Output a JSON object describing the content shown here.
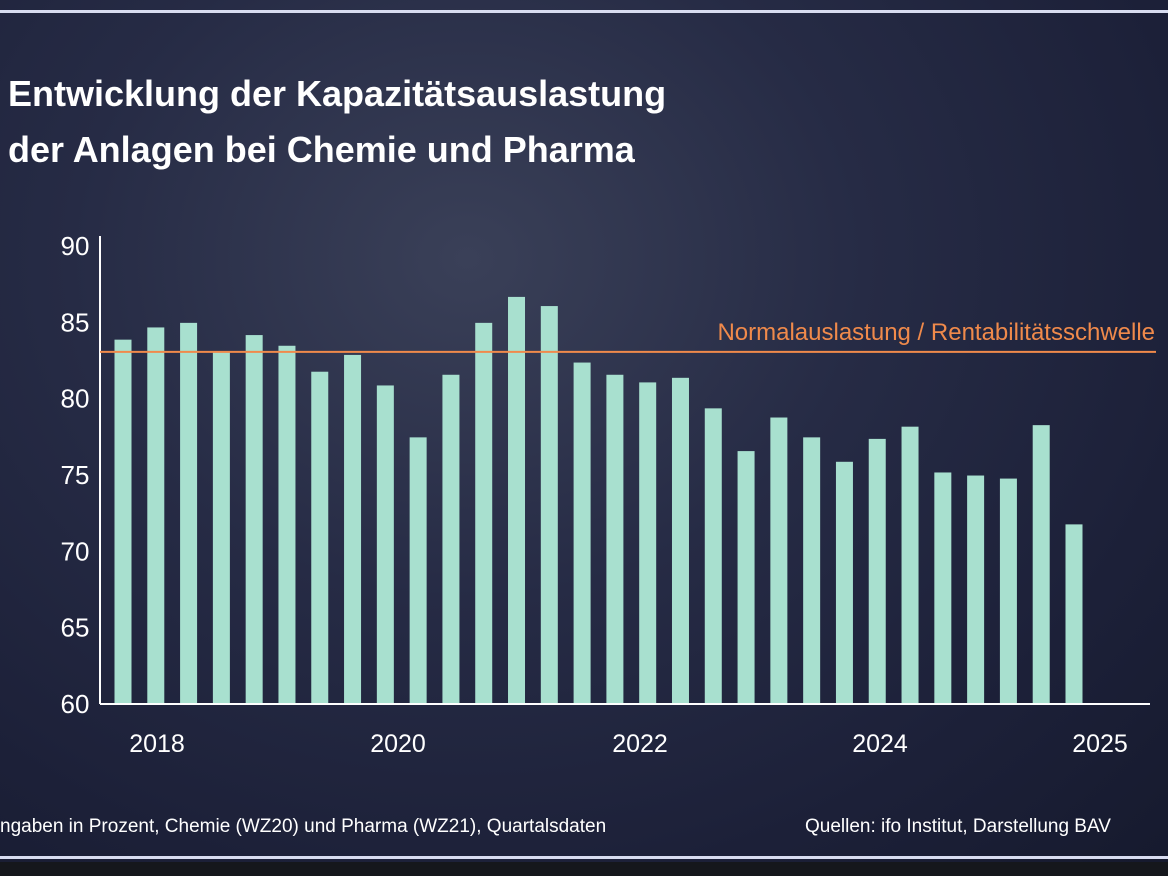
{
  "title_lines": [
    "Entwicklung der Kapazitätsauslastung",
    "der Anlagen bei Chemie und Pharma"
  ],
  "footnote_left": "ngaben in Prozent, Chemie (WZ20) und Pharma (WZ21), Quartalsdaten",
  "footnote_right": "Quellen: ifo Institut, Darstellung BAV",
  "chart_data": {
    "type": "bar",
    "title": "Entwicklung der Kapazitätsauslastung der Anlagen bei Chemie und Pharma",
    "xlabel": "",
    "ylabel": "",
    "ylim": [
      60,
      90
    ],
    "yticks": [
      60,
      65,
      70,
      75,
      80,
      85,
      90
    ],
    "xtick_labels": [
      "2018",
      "2020",
      "2022",
      "2024",
      "2025"
    ],
    "grid": false,
    "bar_color": "#a8e0cf",
    "values": [
      83.8,
      84.6,
      84.9,
      83.0,
      84.1,
      83.4,
      81.7,
      82.8,
      80.8,
      77.4,
      81.5,
      84.9,
      86.6,
      86.0,
      82.3,
      81.5,
      81.0,
      81.3,
      79.3,
      76.5,
      78.7,
      77.4,
      75.8,
      77.3,
      78.1,
      75.1,
      74.9,
      74.7,
      78.2,
      71.7
    ],
    "reference_line": {
      "value": 83.0,
      "label": "Normalauslastung / Rentabilitätsschwelle",
      "color": "#f08a4b"
    }
  }
}
